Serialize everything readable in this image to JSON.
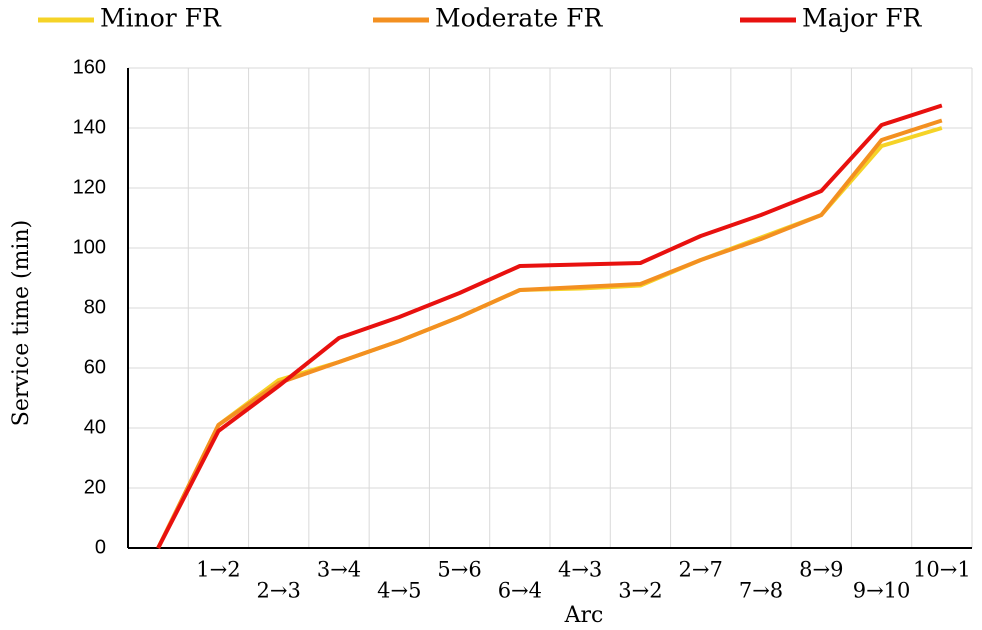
{
  "chart_data": {
    "type": "line",
    "x_label": "Arc",
    "y_label": "Service time (min)",
    "categories": [
      null,
      "1→2",
      "2→3",
      "3→4",
      "4→5",
      "5→6",
      "6→4",
      "4→3",
      "3→2",
      "2→7",
      "7→8",
      "8→9",
      "9→10",
      "10→1"
    ],
    "series": [
      {
        "name": "Minor FR",
        "color": "#f5d327",
        "values": [
          0,
          41,
          56,
          62,
          69,
          77,
          86,
          86.5,
          87.5,
          96,
          103.5,
          111,
          134,
          140
        ]
      },
      {
        "name": "Moderate FR",
        "color": "#f39021",
        "values": [
          0,
          41,
          55,
          62,
          69,
          77,
          86,
          87,
          88,
          96,
          103,
          111,
          136,
          142.5
        ]
      },
      {
        "name": "Major FR",
        "color": "#e8110f",
        "values": [
          0,
          39,
          54,
          70,
          77,
          85,
          94,
          94.5,
          95,
          104,
          111,
          119,
          141,
          147.5
        ]
      }
    ],
    "ylim": [
      0,
      160
    ],
    "yticks": [
      0,
      20,
      40,
      60,
      80,
      100,
      120,
      140,
      160
    ],
    "grid": true
  }
}
